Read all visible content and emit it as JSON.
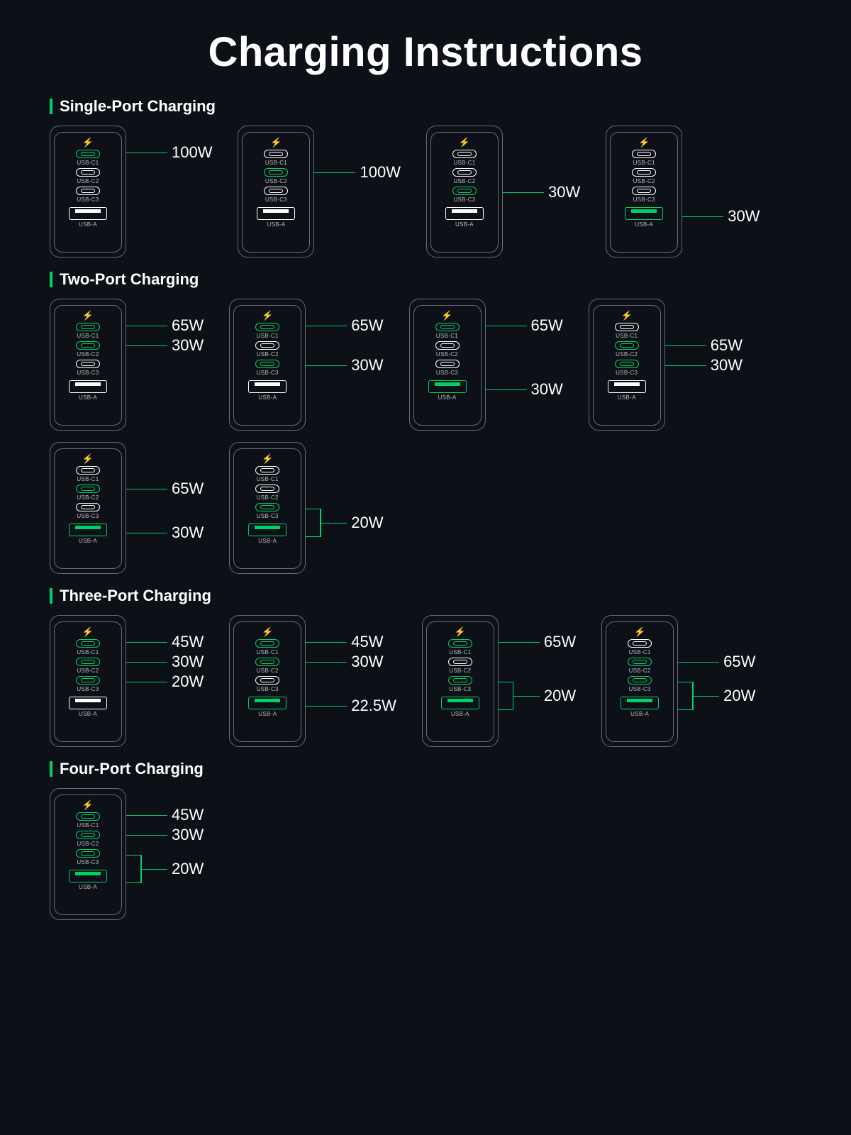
{
  "title": "Charging Instructions",
  "colors": {
    "background": "#0d1117",
    "accent": "#00d068",
    "outline": "#676c72",
    "text": "#ffffff",
    "label": "#b8bcc2"
  },
  "port_labels": {
    "c1": "USB-C1",
    "c2": "USB-C2",
    "c3": "USB-C3",
    "a": "USB-A"
  },
  "sections": [
    {
      "title": "Single-Port Charging",
      "rows": [
        [
          {
            "active": [
              "c1"
            ],
            "watts": [
              {
                "port": "c1",
                "value": "100W"
              }
            ]
          },
          {
            "active": [
              "c2"
            ],
            "watts": [
              {
                "port": "c2",
                "value": "100W"
              }
            ]
          },
          {
            "active": [
              "c3"
            ],
            "watts": [
              {
                "port": "c3",
                "value": "30W"
              }
            ]
          },
          {
            "active": [
              "a"
            ],
            "watts": [
              {
                "port": "a",
                "value": "30W"
              }
            ]
          }
        ]
      ]
    },
    {
      "title": "Two-Port Charging",
      "rows": [
        [
          {
            "active": [
              "c1",
              "c2"
            ],
            "watts": [
              {
                "port": "c1",
                "value": "65W"
              },
              {
                "port": "c2",
                "value": "30W"
              }
            ]
          },
          {
            "active": [
              "c1",
              "c3"
            ],
            "watts": [
              {
                "port": "c1",
                "value": "65W"
              },
              {
                "port": "c3",
                "value": "30W"
              }
            ]
          },
          {
            "active": [
              "c1",
              "a"
            ],
            "watts": [
              {
                "port": "c1",
                "value": "65W"
              },
              {
                "port": "a",
                "value": "30W"
              }
            ]
          },
          {
            "active": [
              "c2",
              "c3"
            ],
            "watts": [
              {
                "port": "c2",
                "value": "65W"
              },
              {
                "port": "c3",
                "value": "30W"
              }
            ]
          }
        ],
        [
          {
            "active": [
              "c2",
              "a"
            ],
            "watts": [
              {
                "port": "c2",
                "value": "65W"
              },
              {
                "port": "a",
                "value": "30W"
              }
            ]
          },
          {
            "active": [
              "c3",
              "a"
            ],
            "join": true,
            "watts": [
              {
                "port": "join",
                "value": "20W"
              }
            ]
          }
        ]
      ]
    },
    {
      "title": "Three-Port Charging",
      "rows": [
        [
          {
            "active": [
              "c1",
              "c2",
              "c3"
            ],
            "watts": [
              {
                "port": "c1",
                "value": "45W"
              },
              {
                "port": "c2",
                "value": "30W"
              },
              {
                "port": "c3",
                "value": "20W"
              }
            ]
          },
          {
            "active": [
              "c1",
              "c2",
              "a"
            ],
            "watts": [
              {
                "port": "c1",
                "value": "45W"
              },
              {
                "port": "c2",
                "value": "30W"
              },
              {
                "port": "a",
                "value": "22.5W"
              }
            ]
          },
          {
            "active": [
              "c1",
              "c3",
              "a"
            ],
            "join": true,
            "watts": [
              {
                "port": "c1",
                "value": "65W"
              },
              {
                "port": "join",
                "value": "20W"
              }
            ]
          },
          {
            "active": [
              "c2",
              "c3",
              "a"
            ],
            "join": true,
            "watts": [
              {
                "port": "c2",
                "value": "65W"
              },
              {
                "port": "join",
                "value": "20W"
              }
            ]
          }
        ]
      ]
    },
    {
      "title": "Four-Port Charging",
      "rows": [
        [
          {
            "active": [
              "c1",
              "c2",
              "c3",
              "a"
            ],
            "join": true,
            "watts": [
              {
                "port": "c1",
                "value": "45W"
              },
              {
                "port": "c2",
                "value": "30W"
              },
              {
                "port": "join",
                "value": "20W"
              }
            ]
          }
        ]
      ]
    }
  ]
}
